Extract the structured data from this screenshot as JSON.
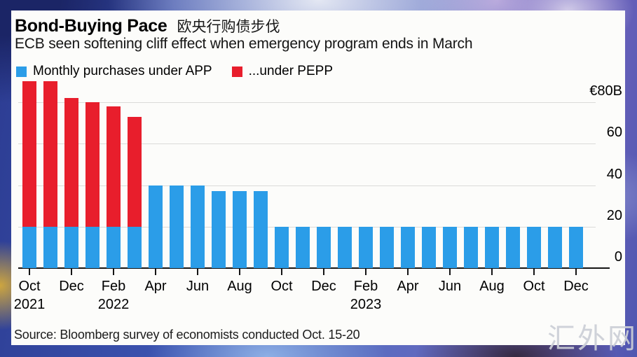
{
  "header": {
    "title": "Bond-Buying Pace",
    "title_cn": "欧央行购债步伐",
    "subtitle": "ECB seen softening cliff effect when emergency program ends in March"
  },
  "legend": [
    {
      "name": "app",
      "label": "Monthly purchases under APP",
      "color": "#2b9de8"
    },
    {
      "name": "pepp",
      "label": "...under PEPP",
      "color": "#e81e2c"
    }
  ],
  "colors": {
    "app_blue": "#2b9de8",
    "pepp_red": "#e81e2c",
    "gridline": "#dbdbd9",
    "axis": "#141414",
    "card_bg": "#fcfcfa"
  },
  "chart_data": {
    "type": "bar",
    "stacked": true,
    "unit": "EUR billions",
    "title": "Bond-Buying Pace",
    "subtitle": "ECB seen softening cliff effect when emergency program ends in March",
    "categories": [
      "Oct 2021",
      "Nov 2021",
      "Dec 2021",
      "Jan 2022",
      "Feb 2022",
      "Mar 2022",
      "Apr 2022",
      "May 2022",
      "Jun 2022",
      "Jul 2022",
      "Aug 2022",
      "Sep 2022",
      "Oct 2022",
      "Nov 2022",
      "Dec 2022",
      "Jan 2023",
      "Feb 2023",
      "Mar 2023",
      "Apr 2023",
      "May 2023",
      "Jun 2023",
      "Jul 2023",
      "Aug 2023",
      "Sep 2023",
      "Oct 2023",
      "Nov 2023",
      "Dec 2023"
    ],
    "series": [
      {
        "name": "Monthly purchases under APP",
        "color": "#2b9de8",
        "values": [
          20,
          20,
          20,
          20,
          20,
          20,
          40,
          40,
          40,
          37,
          37,
          37,
          20,
          20,
          20,
          20,
          20,
          20,
          20,
          20,
          20,
          20,
          20,
          20,
          20,
          20,
          20
        ]
      },
      {
        "name": "...under PEPP",
        "color": "#e81e2c",
        "values": [
          70,
          70,
          62,
          60,
          58,
          53,
          0,
          0,
          0,
          0,
          0,
          0,
          0,
          0,
          0,
          0,
          0,
          0,
          0,
          0,
          0,
          0,
          0,
          0,
          0,
          0,
          0
        ]
      }
    ],
    "ylim": [
      0,
      92
    ],
    "grid": true,
    "legend_position": "top-left",
    "yticks": [
      {
        "value": 80,
        "label": "€80B"
      },
      {
        "value": 60,
        "label": "60"
      },
      {
        "value": 40,
        "label": "40"
      },
      {
        "value": 20,
        "label": "20"
      },
      {
        "value": 0,
        "label": "0"
      }
    ],
    "xticks": [
      {
        "label": "Oct",
        "year": "2021"
      },
      {
        "label": "Dec"
      },
      {
        "label": "Feb",
        "year": "2022"
      },
      {
        "label": "Apr"
      },
      {
        "label": "Jun"
      },
      {
        "label": "Aug"
      },
      {
        "label": "Oct"
      },
      {
        "label": "Dec"
      },
      {
        "label": "Feb",
        "year": "2023"
      },
      {
        "label": "Apr"
      },
      {
        "label": "Jun"
      },
      {
        "label": "Aug"
      },
      {
        "label": "Oct"
      },
      {
        "label": "Dec"
      }
    ]
  },
  "source": "Source: Bloomberg survey of economists conducted Oct. 15-20",
  "watermark": "汇外网"
}
